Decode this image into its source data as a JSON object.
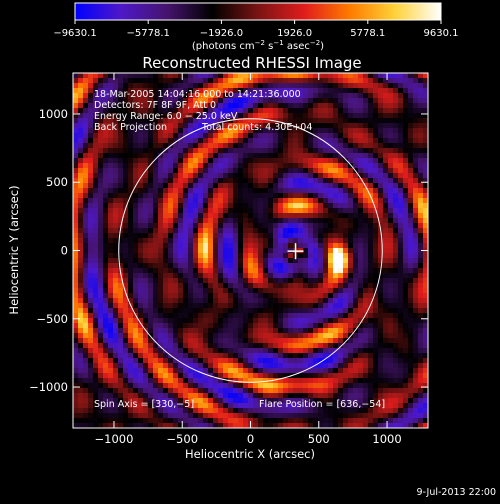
{
  "colorbar": {
    "tick_labels": [
      "−9630.1",
      "−5778.1",
      "−1926.0",
      "1926.0",
      "5778.1",
      "9630.1"
    ],
    "unit_label_parts": [
      "(photons cm",
      "−2",
      " s",
      "−1",
      " asec",
      "−2",
      ")"
    ],
    "colors": [
      "#0000ff",
      "#4e18c8",
      "#46146e",
      "#000000",
      "#7a1414",
      "#e01c1c",
      "#ff7a00",
      "#ffd23a",
      "#ffffff"
    ]
  },
  "chart_data": {
    "type": "heatmap",
    "title": "Reconstructed RHESSI Image",
    "xlabel": "Heliocentric X (arcsec)",
    "ylabel": "Heliocentric Y (arcsec)",
    "xlim": [
      -1300,
      1300
    ],
    "ylim": [
      -1300,
      1300
    ],
    "xticks": [
      -1000,
      -500,
      0,
      500,
      1000
    ],
    "yticks": [
      -1000,
      -500,
      0,
      500,
      1000
    ],
    "xtick_labels": [
      "−1000",
      "−500",
      "0",
      "500",
      "1000"
    ],
    "ytick_labels": [
      "−1000",
      "−500",
      "0",
      "500",
      "1000"
    ],
    "value_range": [
      -9630.1,
      9630.1
    ],
    "solar_limb": {
      "center": [
        0,
        0
      ],
      "radius": 965
    },
    "spin_axis": [
      330,
      -5
    ],
    "flare_position": [
      636,
      -54
    ],
    "annotations": {
      "time_range": "18-Mar-2005 14:04:16.000 to 14:21:36.000",
      "detectors": "Detectors: 7F 8F 9F, Att 0",
      "energy_range": "Energy Range: 6.0 − 25.0 keV",
      "method": "Back Projection",
      "total_counts": "Total counts: 4.30E+04",
      "spin_axis_text": "Spin Axis = [330,−5]",
      "flare_position_text": "Flare Position = [636,−54]"
    }
  },
  "footer": {
    "date": "9-Jul-2013 22:00"
  }
}
